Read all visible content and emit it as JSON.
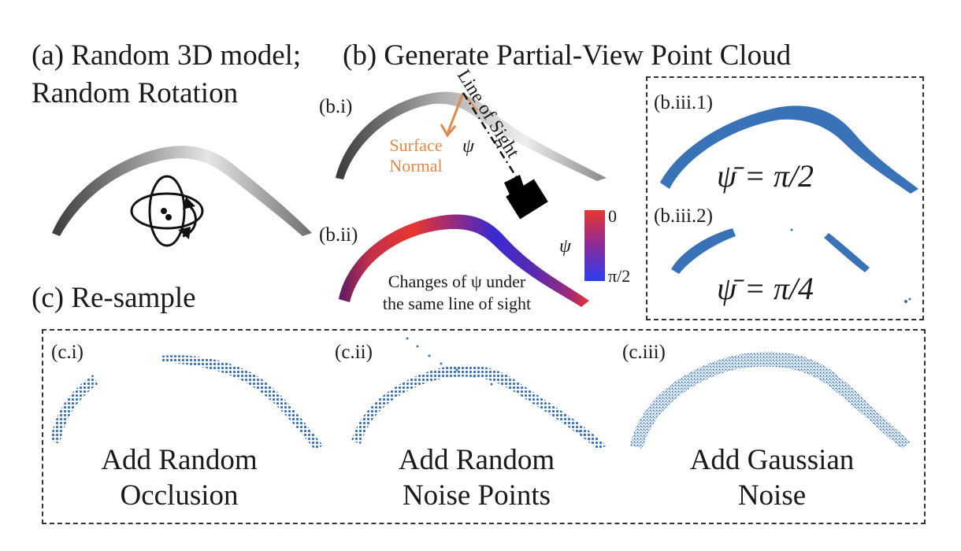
{
  "headings": {
    "a_line1": "(a) Random 3D model;",
    "a_line2": "Random Rotation",
    "b": "(b) Generate Partial-View Point Cloud",
    "c": "(c) Re-sample"
  },
  "panels": {
    "bi": "(b.i)",
    "bii": "(b.ii)",
    "biii1": "(b.iii.1)",
    "biii2": "(b.iii.2)",
    "ci": "(c.i)",
    "cii": "(c.ii)",
    "ciii": "(c.iii)"
  },
  "annotations": {
    "line_of_sight": "Line of Sight",
    "surface_normal_1": "Surface",
    "surface_normal_2": "Normal",
    "psi": "ψ",
    "colorbar_top": "0",
    "colorbar_bottom": "π/2",
    "bii_caption_1": "Changes of ψ under",
    "bii_caption_2": "the same line of sight",
    "psi_bar_1": "ψ̄ = π/2",
    "psi_bar_2": "ψ̄ = π/4"
  },
  "captions": {
    "ci_1": "Add Random",
    "ci_2": "Occlusion",
    "cii_1": "Add Random",
    "cii_2": "Noise Points",
    "ciii_1": "Add Gaussian",
    "ciii_2": "Noise"
  },
  "colors": {
    "point_blue": "#3a72b8",
    "accent_orange": "#e08a4a",
    "colorbar_top": "#e8362f",
    "colorbar_bottom": "#2b3ef2"
  }
}
